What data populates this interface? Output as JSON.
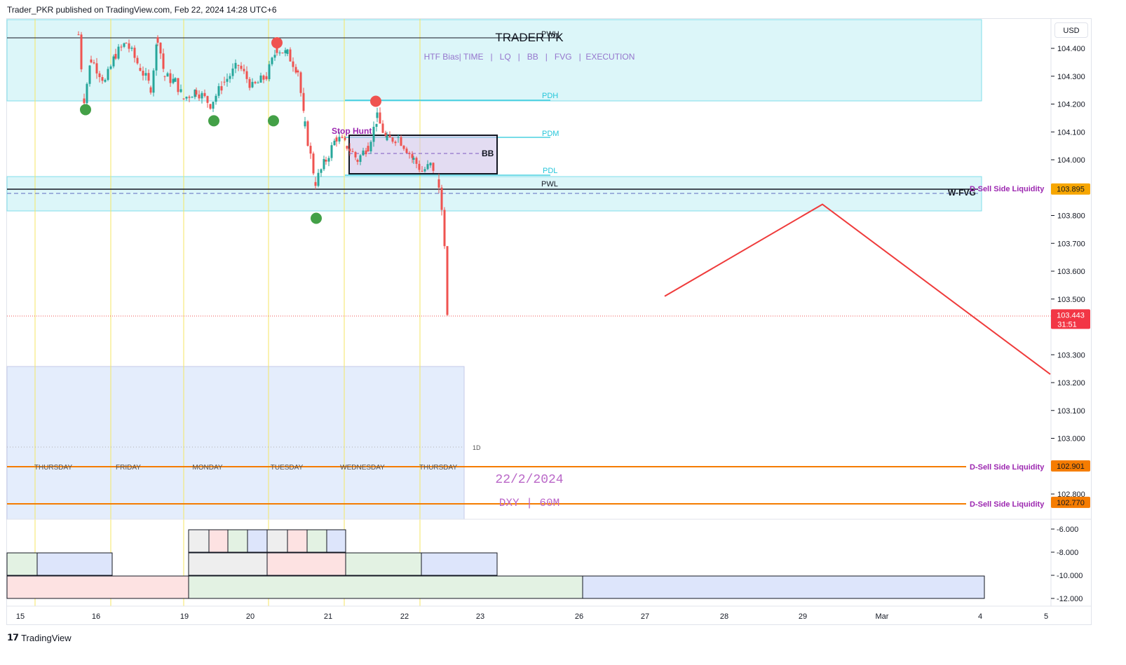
{
  "header": {
    "publisher": "Trader_PKR published on TradingView.com, Feb 22, 2024 14:28 UTC+6"
  },
  "footer": {
    "brand": "TradingView"
  },
  "price_scale": {
    "currency": "USD"
  },
  "chart_data": {
    "type": "candlestick",
    "symbol": "DXY",
    "timeframe": "60M",
    "watermark_title": "TRADER PK",
    "watermark_subtitle": "HTF Bias| TIME   |   LQ   |   BB   |   FVG   |  EXECUTION",
    "date_text": "22/2/2024",
    "symbol_text": "DXY | 60M",
    "y_axis_ticks": [
      "104.400",
      "104.300",
      "104.200",
      "104.100",
      "104.000",
      "103.900",
      "103.800",
      "103.700",
      "103.600",
      "103.500",
      "103.300",
      "103.200",
      "103.100",
      "103.000",
      "102.800"
    ],
    "x_axis_ticks": [
      "15",
      "16",
      "19",
      "20",
      "21",
      "22",
      "23",
      "26",
      "27",
      "28",
      "29",
      "Mar",
      "4",
      "5"
    ],
    "current_price": "103.443",
    "countdown": "31:51",
    "price_labels": [
      {
        "label": "D-Sell Side Liquidity",
        "value": "103.895",
        "color": "#f7a600"
      },
      {
        "label": "D-Sell Side Liquidity",
        "value": "102.901",
        "color": "#f57c00"
      },
      {
        "label": "D-Sell Side Liquidity",
        "value": "102.770",
        "color": "#f57c00"
      }
    ],
    "level_labels": [
      "PWH",
      "PDH",
      "PDM",
      "PDL",
      "PWL",
      "W-FVG",
      "BB",
      "Stop Hunt"
    ],
    "weekday_labels": [
      "THURSDAY",
      "FRIDAY",
      "MONDAY",
      "TUESDAY",
      "WEDNESDAY",
      "THURSDAY"
    ],
    "session_tag": "1D",
    "indicator_ticks": [
      "-6.000",
      "-8.000",
      "-10.000",
      "-12.000"
    ],
    "swing_points": {
      "lows": [
        {
          "day": "16",
          "price": 104.18
        },
        {
          "day": "19",
          "price": 104.14
        },
        {
          "day": "20",
          "price": 104.14
        },
        {
          "day": "20",
          "price": 103.79
        }
      ],
      "highs": [
        {
          "day": "20",
          "price": 104.42
        },
        {
          "day": "21",
          "price": 104.21
        }
      ]
    },
    "projection_path": [
      {
        "date": "Feb 27",
        "price": 103.51
      },
      {
        "date": "Feb 29",
        "price": 103.84
      },
      {
        "date": "Mar 4",
        "price": 103.23
      }
    ],
    "series": [
      {
        "name": "DXY",
        "ohlc_last_segment": [
          {
            "o": 103.93,
            "h": 103.95,
            "l": 103.88,
            "c": 103.9
          },
          {
            "o": 103.9,
            "h": 103.91,
            "l": 103.8,
            "c": 103.82
          },
          {
            "o": 103.82,
            "h": 103.83,
            "l": 103.68,
            "c": 103.69
          },
          {
            "o": 103.69,
            "h": 103.69,
            "l": 103.44,
            "c": 103.443
          }
        ]
      }
    ],
    "colors": {
      "bull": "#26a69a",
      "bear": "#ef5350",
      "zone": "#b2ebf2",
      "session": "#dbe7fb",
      "projection": "#ef3b3b",
      "liquidity": "#f57c00",
      "label_purple": "#9c27b0"
    }
  }
}
